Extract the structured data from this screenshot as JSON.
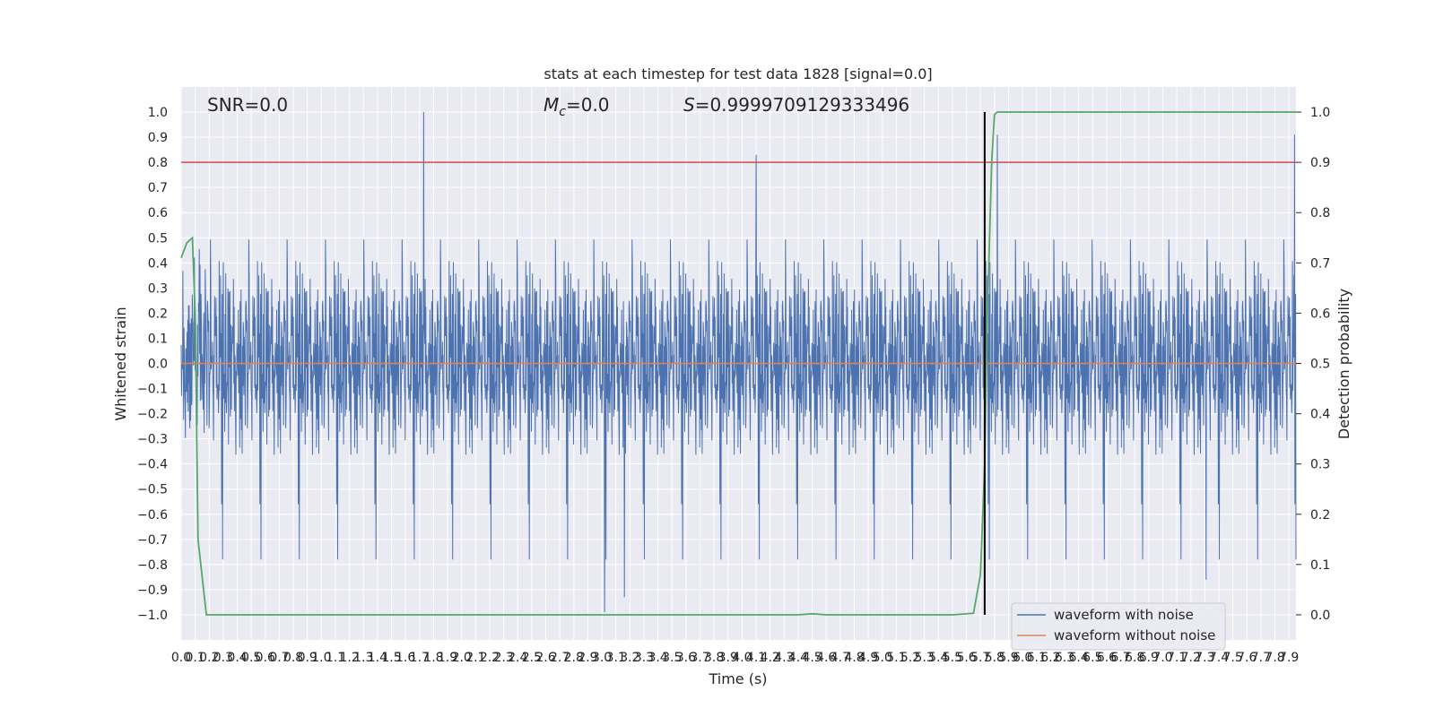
{
  "chart_data": {
    "type": "line",
    "title": "stats at each timestep for test data 1828 [signal=0.0]",
    "xlabel": "Time (s)",
    "ylabel": "Whitened strain",
    "y2label": "Detection probability",
    "annotations": {
      "snr": "SNR=0.0",
      "mc_symbol": "M",
      "mc_sub": "c",
      "mc_value": "=0.0",
      "s_symbol": "S",
      "s_value": "=0.9999709129333496"
    },
    "xlim": [
      0,
      7.95
    ],
    "ylim": [
      -1.1,
      1.1
    ],
    "y2lim": [
      -0.05,
      1.05
    ],
    "x_ticks": [
      0.0,
      0.1,
      0.2,
      0.3,
      0.4,
      0.5,
      0.6,
      0.7,
      0.8,
      0.9,
      1.0,
      1.1,
      1.2,
      1.3,
      1.4,
      1.5,
      1.6,
      1.7,
      1.8,
      1.9,
      2.0,
      2.1,
      2.2,
      2.3,
      2.4,
      2.5,
      2.6,
      2.7,
      2.8,
      2.9,
      3.0,
      3.1,
      3.2,
      3.3,
      3.4,
      3.5,
      3.6,
      3.7,
      3.8,
      3.9,
      4.0,
      4.1,
      4.2,
      4.3,
      4.4,
      4.5,
      4.6,
      4.7,
      4.8,
      4.9,
      5.0,
      5.1,
      5.2,
      5.3,
      5.4,
      5.5,
      5.6,
      5.7,
      5.8,
      5.9,
      6.0,
      6.1,
      6.2,
      6.3,
      6.4,
      6.5,
      6.6,
      6.7,
      6.8,
      6.9,
      7.0,
      7.1,
      7.2,
      7.3,
      7.4,
      7.5,
      7.6,
      7.7,
      7.8,
      7.9
    ],
    "x_tick_labels": [
      "0.0",
      "0.1",
      "0.2",
      "0.3",
      "0.4",
      "0.5",
      "0.6",
      "0.7",
      "0.8",
      "0.9",
      "1.0",
      "1.1",
      "1.2",
      "1.3",
      "1.4",
      "1.5",
      "1.6",
      "1.7",
      "1.8",
      "1.9",
      "2.0",
      "2.1",
      "2.2",
      "2.3",
      "2.4",
      "2.5",
      "2.6",
      "2.7",
      "2.8",
      "2.9",
      "3.0",
      "3.1",
      "3.2",
      "3.3",
      "3.4",
      "3.5",
      "3.6",
      "3.7",
      "3.8",
      "3.9",
      "4.0",
      "4.1",
      "4.2",
      "4.3",
      "4.4",
      "4.5",
      "4.6",
      "4.7",
      "4.8",
      "4.9",
      "5.0",
      "5.1",
      "5.2",
      "5.3",
      "5.4",
      "5.5",
      "5.6",
      "5.7",
      "5.8",
      "5.9",
      "6.0",
      "6.1",
      "6.2",
      "6.3",
      "6.4",
      "6.5",
      "6.6",
      "6.7",
      "6.8",
      "6.9",
      "7.0",
      "7.1",
      "7.2",
      "7.3",
      "7.4",
      "7.5",
      "7.6",
      "7.7",
      "7.8",
      "7.9"
    ],
    "y_ticks": [
      -1.0,
      -0.9,
      -0.8,
      -0.7,
      -0.6,
      -0.5,
      -0.4,
      -0.3,
      -0.2,
      -0.1,
      0.0,
      0.1,
      0.2,
      0.3,
      0.4,
      0.5,
      0.6,
      0.7,
      0.8,
      0.9,
      1.0
    ],
    "y_tick_labels": [
      "−1.0",
      "−0.9",
      "−0.8",
      "−0.7",
      "−0.6",
      "−0.5",
      "−0.4",
      "−0.3",
      "−0.2",
      "−0.1",
      "0.0",
      "0.1",
      "0.2",
      "0.3",
      "0.4",
      "0.5",
      "0.6",
      "0.7",
      "0.8",
      "0.9",
      "1.0"
    ],
    "y2_ticks": [
      0.0,
      0.1,
      0.2,
      0.3,
      0.4,
      0.5,
      0.6,
      0.7,
      0.8,
      0.9,
      1.0
    ],
    "y2_tick_labels": [
      "0.0",
      "0.1",
      "0.2",
      "0.3",
      "0.4",
      "0.5",
      "0.6",
      "0.7",
      "0.8",
      "0.9",
      "1.0"
    ],
    "grid": true,
    "legend": {
      "placement": "lower-right",
      "entries": [
        "waveform with noise",
        "waveform without noise"
      ]
    },
    "series": [
      {
        "name": "waveform with noise",
        "axis": "left",
        "color": "#4c72b0",
        "description_only": false,
        "noise_seed": 1828,
        "envelope_peaks": [
          {
            "x": 1.73,
            "y": 1.0
          },
          {
            "x": 4.1,
            "y": 0.83
          },
          {
            "x": 3.02,
            "y": -0.99
          },
          {
            "x": 3.16,
            "y": -0.93
          },
          {
            "x": 7.31,
            "y": -0.86
          },
          {
            "x": 5.82,
            "y": 0.91
          },
          {
            "x": 7.94,
            "y": 0.91
          }
        ]
      },
      {
        "name": "waveform without noise",
        "axis": "left",
        "color": "#dd8452",
        "x": [
          0,
          7.95
        ],
        "y": [
          0.0,
          0.0
        ]
      },
      {
        "axis": "right",
        "color": "#55a868",
        "x": [
          0.0,
          0.04,
          0.08,
          0.1,
          0.12,
          0.18,
          0.22,
          1.0,
          2.0,
          3.0,
          4.0,
          4.4,
          4.5,
          4.6,
          5.0,
          5.5,
          5.65,
          5.7,
          5.73,
          5.75,
          5.78,
          5.8,
          5.82,
          5.85,
          6.5,
          7.95
        ],
        "y": [
          0.71,
          0.74,
          0.75,
          0.6,
          0.15,
          0.0,
          0.0,
          0.0,
          0.0,
          0.0,
          0.0,
          0.0,
          0.002,
          0.0,
          0.0,
          0.0,
          0.003,
          0.08,
          0.3,
          0.6,
          0.9,
          0.995,
          1.0,
          1.0,
          1.0,
          1.0
        ]
      }
    ],
    "hlines": [
      {
        "axis": "right",
        "y": 0.9,
        "color": "#c44e52"
      }
    ],
    "vlines": [
      {
        "x": 5.73,
        "color": "#000000",
        "ymin": 0.0,
        "ymax": 1.0,
        "axis": "right"
      }
    ],
    "colors": {
      "background": "#eaeaf2",
      "grid": "#ffffff",
      "noise": "#4c72b0",
      "clean": "#dd8452",
      "prob": "#55a868",
      "threshold": "#c44e52",
      "event": "#000000"
    }
  }
}
